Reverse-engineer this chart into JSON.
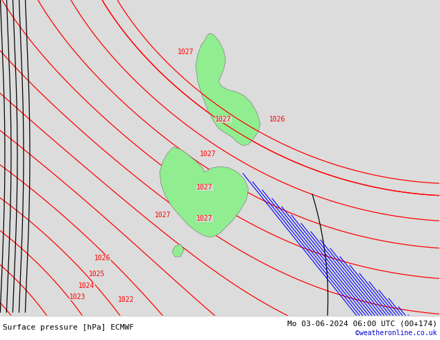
{
  "title_left": "Surface pressure [hPa] ECMWF",
  "title_right": "Mo 03-06-2024 06:00 UTC (00+174)",
  "credit": "©weatheronline.co.uk",
  "background_color": "#dcdcdc",
  "land_color": "#90EE90",
  "border_color": "#808080",
  "isobar_color_red": "#ff0000",
  "isobar_color_blue": "#0000ff",
  "isobar_color_black": "#000000",
  "label_fontsize": 7,
  "title_fontsize": 8,
  "credit_fontsize": 7,
  "credit_color": "#0000cc",
  "figsize": [
    6.34,
    4.9
  ],
  "dpi": 100
}
